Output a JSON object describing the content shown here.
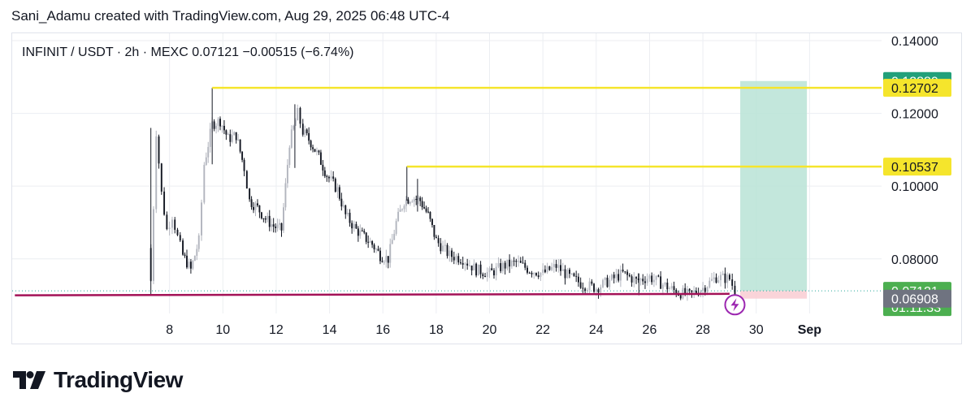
{
  "caption": "Sani_Adamu created with TradingView.com, Aug 29, 2025 06:48 UTC-4",
  "brand": "TradingView",
  "chart_data": {
    "type": "candlestick",
    "symbol_line": "INFINIT / USDT · 2h · MEXC",
    "last_price": "0.07121",
    "change": "−0.00515 (−6.74%)",
    "ylim": [
      0.065,
      0.142
    ],
    "y_ticks": [
      "0.14000",
      "0.12000",
      "0.10000",
      "0.08000"
    ],
    "x_ticks": [
      "8",
      "10",
      "12",
      "14",
      "16",
      "18",
      "20",
      "22",
      "24",
      "26",
      "28",
      "30",
      "Sep"
    ],
    "x_tick_days": [
      8,
      10,
      12,
      14,
      16,
      18,
      20,
      22,
      24,
      26,
      28,
      30,
      32
    ],
    "x_range_days": [
      2.1,
      34.7
    ],
    "price_series": [
      {
        "d": 7.2,
        "p": 0.083
      },
      {
        "d": 7.3,
        "p": 0.074
      },
      {
        "d": 7.5,
        "p": 0.115
      },
      {
        "d": 7.7,
        "p": 0.098
      },
      {
        "d": 7.9,
        "p": 0.088
      },
      {
        "d": 8.1,
        "p": 0.092
      },
      {
        "d": 8.3,
        "p": 0.086
      },
      {
        "d": 8.5,
        "p": 0.081
      },
      {
        "d": 8.8,
        "p": 0.077
      },
      {
        "d": 9.1,
        "p": 0.085
      },
      {
        "d": 9.3,
        "p": 0.106
      },
      {
        "d": 9.6,
        "p": 0.117
      },
      {
        "d": 9.9,
        "p": 0.118
      },
      {
        "d": 10.2,
        "p": 0.113
      },
      {
        "d": 10.5,
        "p": 0.114
      },
      {
        "d": 10.8,
        "p": 0.105
      },
      {
        "d": 11.0,
        "p": 0.096
      },
      {
        "d": 11.3,
        "p": 0.094
      },
      {
        "d": 11.6,
        "p": 0.091
      },
      {
        "d": 11.9,
        "p": 0.089
      },
      {
        "d": 12.2,
        "p": 0.088
      },
      {
        "d": 12.5,
        "p": 0.112
      },
      {
        "d": 12.8,
        "p": 0.12
      },
      {
        "d": 13.0,
        "p": 0.115
      },
      {
        "d": 13.3,
        "p": 0.112
      },
      {
        "d": 13.6,
        "p": 0.108
      },
      {
        "d": 13.9,
        "p": 0.103
      },
      {
        "d": 14.3,
        "p": 0.099
      },
      {
        "d": 14.6,
        "p": 0.092
      },
      {
        "d": 15.0,
        "p": 0.088
      },
      {
        "d": 15.3,
        "p": 0.086
      },
      {
        "d": 15.6,
        "p": 0.084
      },
      {
        "d": 15.9,
        "p": 0.081
      },
      {
        "d": 16.2,
        "p": 0.08
      },
      {
        "d": 16.5,
        "p": 0.09
      },
      {
        "d": 16.8,
        "p": 0.096
      },
      {
        "d": 17.1,
        "p": 0.097
      },
      {
        "d": 17.4,
        "p": 0.096
      },
      {
        "d": 17.7,
        "p": 0.092
      },
      {
        "d": 18.0,
        "p": 0.085
      },
      {
        "d": 18.5,
        "p": 0.081
      },
      {
        "d": 19.0,
        "p": 0.08
      },
      {
        "d": 19.5,
        "p": 0.077
      },
      {
        "d": 20.0,
        "p": 0.076
      },
      {
        "d": 20.5,
        "p": 0.078
      },
      {
        "d": 21.0,
        "p": 0.079
      },
      {
        "d": 21.5,
        "p": 0.077
      },
      {
        "d": 22.0,
        "p": 0.076
      },
      {
        "d": 22.5,
        "p": 0.078
      },
      {
        "d": 23.0,
        "p": 0.075
      },
      {
        "d": 23.5,
        "p": 0.073
      },
      {
        "d": 24.0,
        "p": 0.072
      },
      {
        "d": 24.5,
        "p": 0.074
      },
      {
        "d": 25.0,
        "p": 0.076
      },
      {
        "d": 25.5,
        "p": 0.074
      },
      {
        "d": 26.0,
        "p": 0.075
      },
      {
        "d": 26.5,
        "p": 0.073
      },
      {
        "d": 27.0,
        "p": 0.071
      },
      {
        "d": 27.5,
        "p": 0.07
      },
      {
        "d": 28.0,
        "p": 0.072
      },
      {
        "d": 28.5,
        "p": 0.075
      },
      {
        "d": 29.0,
        "p": 0.0745
      },
      {
        "d": 29.2,
        "p": 0.0712
      }
    ],
    "horizontal_levels": [
      {
        "value": 0.12702,
        "label": "0.12702",
        "start_day": 9.6,
        "color": "#f5e52c"
      },
      {
        "value": 0.10537,
        "label": "0.10537",
        "start_day": 16.9,
        "color": "#f5e52c"
      }
    ],
    "support_line": {
      "from": [
        2.2,
        0.07
      ],
      "to": [
        29.0,
        0.0704
      ],
      "color": "#a31257"
    },
    "position_tool": {
      "start_day": 29.4,
      "end_day": 31.9,
      "entry": 0.07121,
      "target": 0.12889,
      "stop": 0.06908,
      "profit_color": "#b9e3d6",
      "loss_color": "#f9cdd2"
    },
    "price_labels": [
      {
        "value": 0.12889,
        "text": "0.12889",
        "bg": "#22a07a",
        "fg": "#ffffff"
      },
      {
        "value": 0.12702,
        "text": "0.12702",
        "bg": "#f5e52c",
        "fg": "#131722"
      },
      {
        "value": 0.10537,
        "text": "0.10537",
        "bg": "#f5e52c",
        "fg": "#131722"
      },
      {
        "value": 0.07121,
        "text": "0.07121",
        "sub": "01:11:33",
        "bg": "#4caf50",
        "fg": "#ffffff"
      },
      {
        "value": 0.06908,
        "text": "0.06908",
        "bg": "#6f7380",
        "fg": "#ffffff"
      }
    ],
    "colors": {
      "up": "#b2b5be",
      "down": "#131722",
      "grid": "#eceef2",
      "last_line": "#26a69a"
    },
    "lightning_icon": "lightning-bolt-icon"
  }
}
